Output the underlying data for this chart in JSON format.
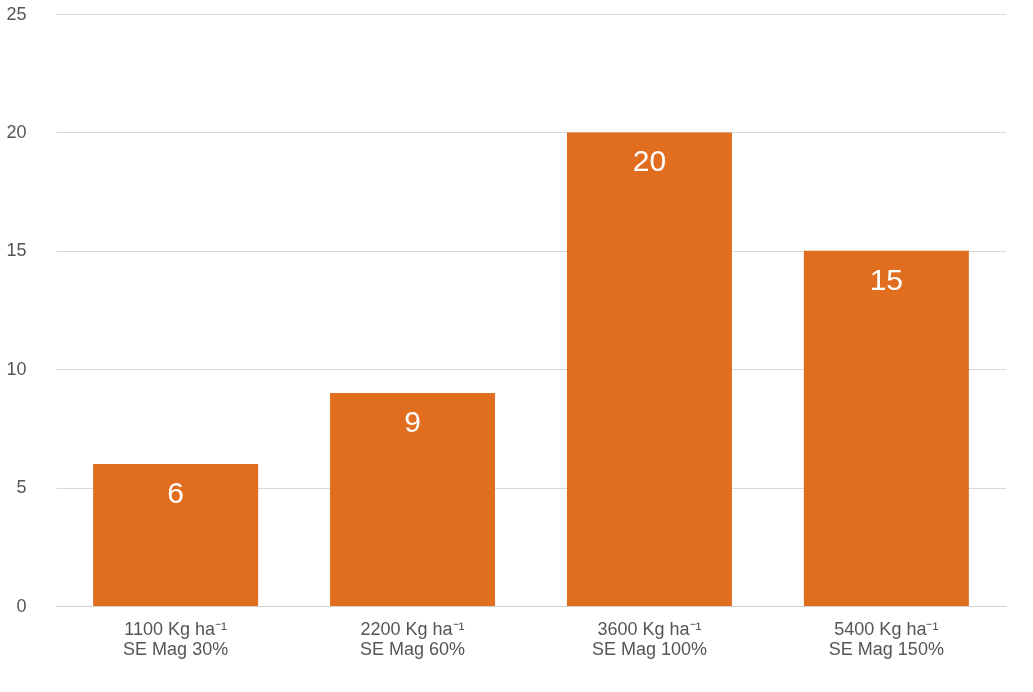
{
  "chart_data": {
    "type": "bar",
    "categories": [
      "1100 Kg ha⁻¹\nSE Mag 30%",
      "2200 Kg ha⁻¹\nSE Mag 60%",
      "3600 Kg ha⁻¹\nSE Mag 100%",
      "5400 Kg ha⁻¹\nSE Mag 150%"
    ],
    "values": [
      6,
      9,
      20,
      15
    ],
    "color": "#e06e1e",
    "ylim": [
      0,
      25
    ],
    "yticks": [
      0,
      5,
      10,
      15,
      20,
      25
    ],
    "grid": "y",
    "data_labels": true
  }
}
